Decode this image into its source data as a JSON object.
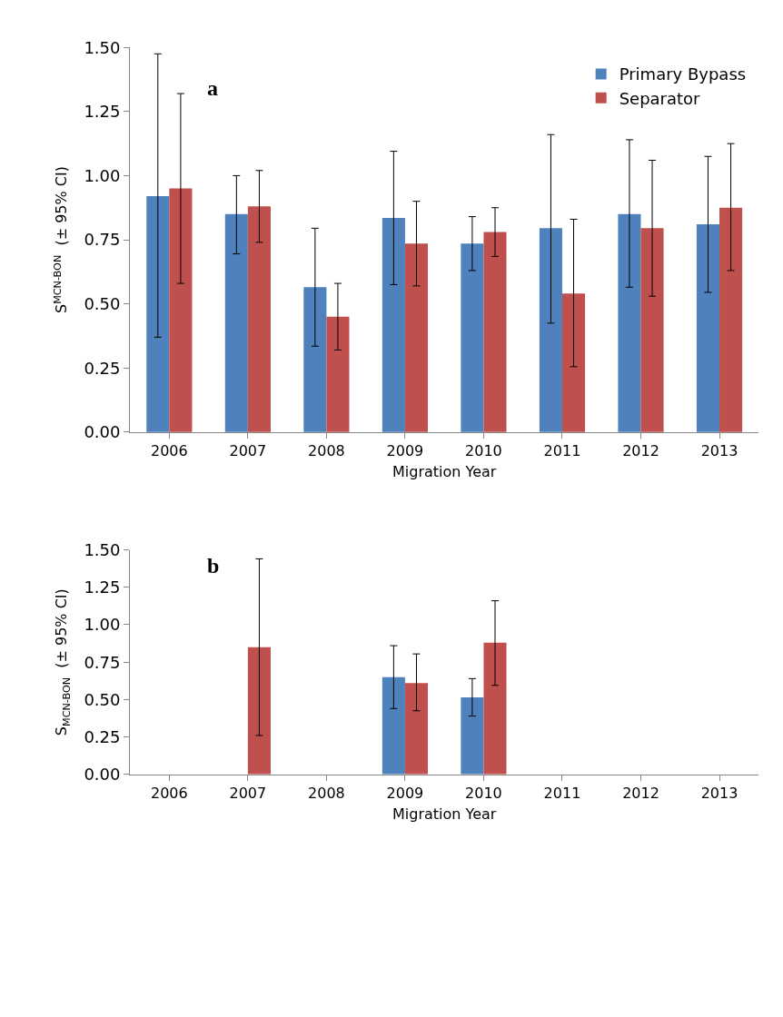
{
  "chart_data": [
    {
      "type": "bar",
      "annotations": [
        "a"
      ],
      "xlabel": "Migration Year",
      "ylabel": "S$^{MCN-BON}$  (± 95% CI)",
      "categories": [
        "2006",
        "2007",
        "2008",
        "2009",
        "2010",
        "2011",
        "2012",
        "2013"
      ],
      "ylim": [
        0,
        1.5
      ],
      "yticks": [
        {
          "value": 0,
          "label": "0.00"
        },
        {
          "value": 0.25,
          "label": "0.25"
        },
        {
          "value": 0.5,
          "label": "0.50"
        },
        {
          "value": 0.75,
          "label": "0.75"
        },
        {
          "value": 1,
          "label": "1.00"
        },
        {
          "value": 1.25,
          "label": "1.25"
        },
        {
          "value": 1.5,
          "label": "1.50"
        }
      ],
      "grid": false,
      "legend": "top right",
      "series": [
        {
          "name": "Primary Bypass",
          "color": "#4f81bd",
          "values": [
            0.92,
            0.85,
            0.565,
            0.835,
            0.735,
            0.795,
            0.85,
            0.81
          ],
          "errors": [
            [
              0.37,
              1.475
            ],
            [
              0.695,
              1.0
            ],
            [
              0.335,
              0.795
            ],
            [
              0.575,
              1.095
            ],
            [
              0.63,
              0.84
            ],
            [
              0.425,
              1.16
            ],
            [
              0.565,
              1.14
            ],
            [
              0.545,
              1.075
            ]
          ]
        },
        {
          "name": "Separator",
          "color": "#c0504d",
          "values": [
            0.95,
            0.88,
            0.45,
            0.735,
            0.78,
            0.54,
            0.795,
            0.875
          ],
          "errors": [
            [
              0.58,
              1.32
            ],
            [
              0.74,
              1.02
            ],
            [
              0.32,
              0.58
            ],
            [
              0.57,
              0.9
            ],
            [
              0.685,
              0.875
            ],
            [
              0.255,
              0.83
            ],
            [
              0.53,
              1.06
            ],
            [
              0.63,
              1.125
            ]
          ]
        }
      ]
    },
    {
      "type": "bar",
      "annotations": [
        "b"
      ],
      "xlabel": "Migration Year",
      "ylabel": "S$_{MCN-BON}$  (± 95% CI)",
      "categories": [
        "2006",
        "2007",
        "2008",
        "2009",
        "2010",
        "2011",
        "2012",
        "2013"
      ],
      "ylim": [
        0,
        1.5
      ],
      "yticks": [
        {
          "value": 0,
          "label": "0.00"
        },
        {
          "value": 0.25,
          "label": "0.25"
        },
        {
          "value": 0.5,
          "label": "0.50"
        },
        {
          "value": 0.75,
          "label": "0.75"
        },
        {
          "value": 1,
          "label": "1.00"
        },
        {
          "value": 1.25,
          "label": "1.25"
        },
        {
          "value": 1.5,
          "label": "1.50"
        }
      ],
      "grid": false,
      "series": [
        {
          "color": "#4f81bd",
          "values": [
            null,
            null,
            null,
            0.65,
            0.515,
            null,
            null,
            null
          ],
          "errors": [
            null,
            null,
            null,
            [
              0.44,
              0.86
            ],
            [
              0.39,
              0.64
            ],
            null,
            null,
            null
          ]
        },
        {
          "color": "#c0504d",
          "values": [
            null,
            0.85,
            null,
            0.61,
            0.88,
            null,
            null,
            null
          ],
          "errors": [
            null,
            [
              0.26,
              1.44
            ],
            null,
            [
              0.425,
              0.805
            ],
            [
              0.595,
              1.16
            ],
            null,
            null,
            null
          ]
        }
      ]
    }
  ]
}
